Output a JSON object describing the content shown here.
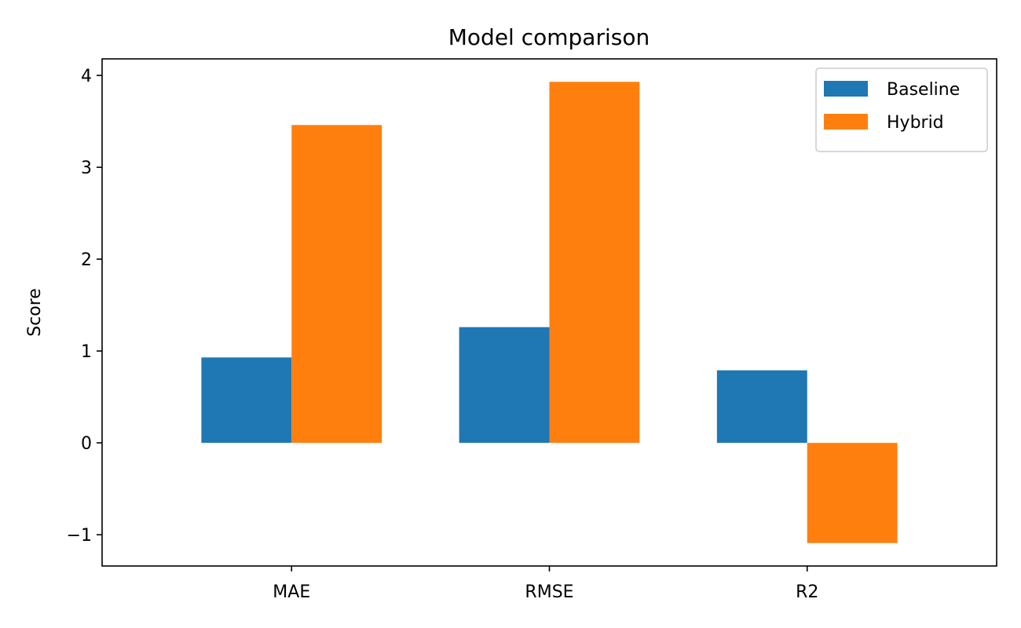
{
  "chart_data": {
    "type": "bar",
    "title": "Model comparison",
    "xlabel": "",
    "ylabel": "Score",
    "categories": [
      "MAE",
      "RMSE",
      "R2"
    ],
    "series": [
      {
        "name": "Baseline",
        "values": [
          0.93,
          1.26,
          0.79
        ],
        "color": "#1f77b4"
      },
      {
        "name": "Hybrid",
        "values": [
          3.46,
          3.93,
          -1.09
        ],
        "color": "#ff7f0e"
      }
    ],
    "ylim": [
      -1.34,
      4.18
    ],
    "yticks": [
      -1,
      0,
      1,
      2,
      3,
      4
    ],
    "ytick_labels": [
      "−1",
      "0",
      "1",
      "2",
      "3",
      "4"
    ],
    "grid": false,
    "legend_position": "top-right"
  }
}
